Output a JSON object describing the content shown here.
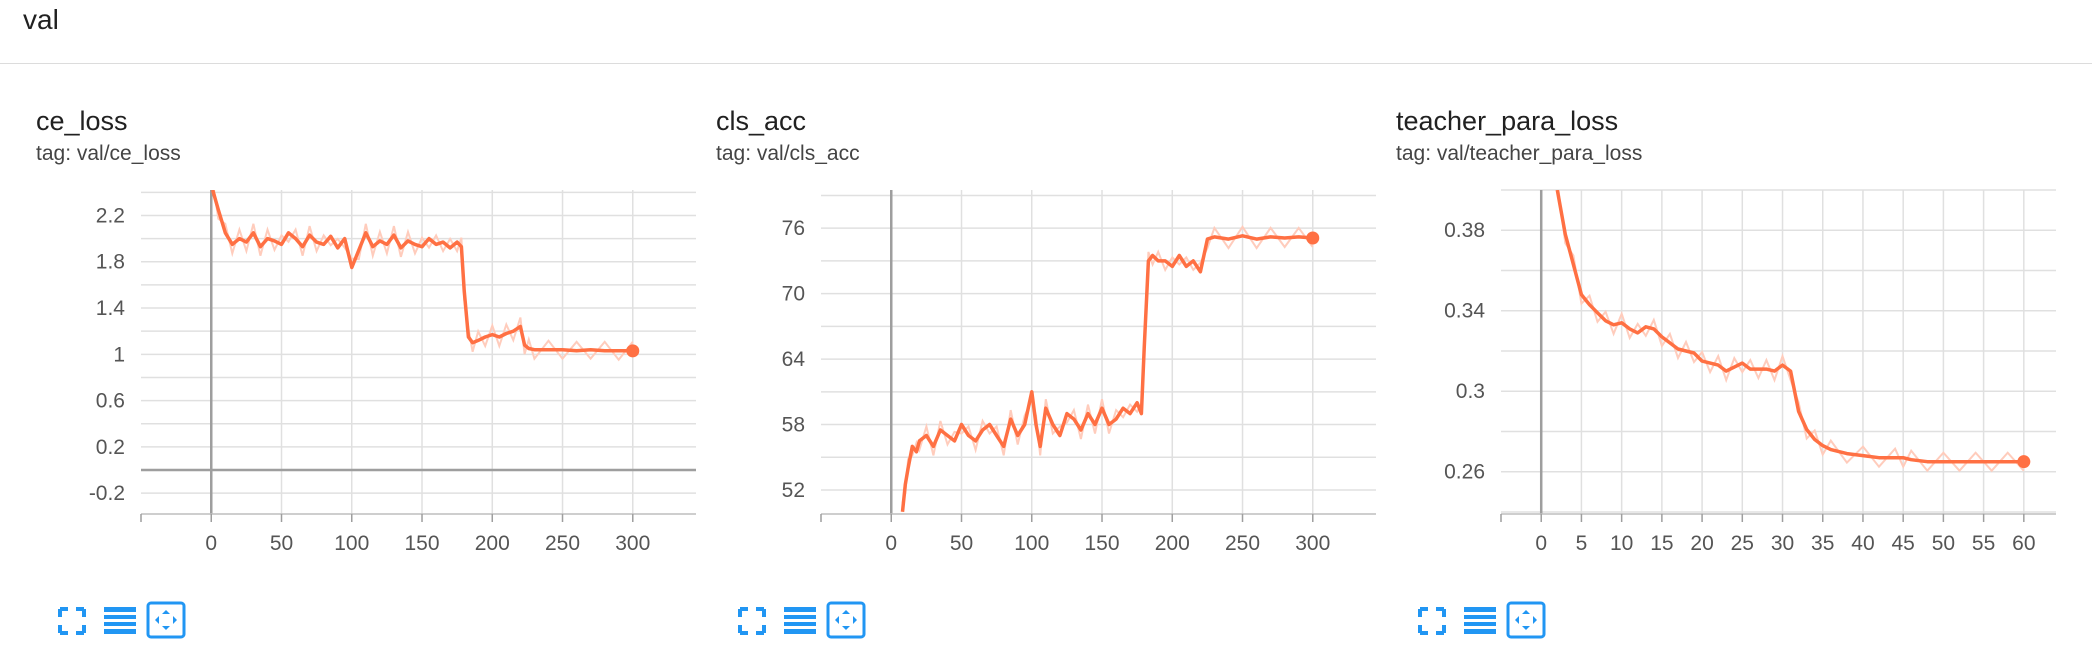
{
  "section": {
    "title": "val"
  },
  "colors": {
    "line": "#ff7043",
    "raw": "#ffccbc",
    "grid": "#e0e0e0",
    "axis": "#9e9e9e",
    "icon": "#2196f3"
  },
  "toolbar_icons": [
    "fullscreen-icon",
    "data-table-icon",
    "fit-domain-icon"
  ],
  "chart_data": [
    {
      "type": "line",
      "title": "ce_loss",
      "tag": "tag: val/ce_loss",
      "xlim": [
        -50,
        345
      ],
      "ylim": [
        -0.38,
        2.42
      ],
      "xticks": [
        0,
        50,
        100,
        150,
        200,
        250,
        300
      ],
      "yticks": [
        -0.2,
        0.2,
        0.6,
        1,
        1.4,
        1.8,
        2.2
      ],
      "y_minor": [
        -0.4,
        0,
        0.4,
        0.8,
        1.2,
        1.6,
        2.0,
        2.4
      ],
      "grid": true,
      "series": [
        {
          "x": [
            1,
            5,
            10,
            15,
            20,
            25,
            30,
            35,
            40,
            45,
            50,
            55,
            60,
            65,
            70,
            75,
            80,
            85,
            90,
            95,
            100,
            105,
            110,
            115,
            120,
            125,
            130,
            135,
            140,
            145,
            150,
            155,
            160,
            165,
            170,
            175,
            178,
            180,
            183,
            186,
            190,
            195,
            200,
            205,
            210,
            215,
            220,
            223,
            226,
            230,
            240,
            250,
            260,
            270,
            280,
            290,
            300
          ],
          "y": [
            2.42,
            2.25,
            2.05,
            1.95,
            2.0,
            1.97,
            2.05,
            1.93,
            2.0,
            1.98,
            1.95,
            2.05,
            2.0,
            1.93,
            2.03,
            1.97,
            1.95,
            2.02,
            1.92,
            2.0,
            1.75,
            1.9,
            2.05,
            1.93,
            1.98,
            1.95,
            2.03,
            1.92,
            1.98,
            1.95,
            1.93,
            2.0,
            1.95,
            1.97,
            1.92,
            1.97,
            1.93,
            1.55,
            1.15,
            1.1,
            1.12,
            1.15,
            1.17,
            1.15,
            1.18,
            1.2,
            1.24,
            1.08,
            1.05,
            1.04,
            1.04,
            1.04,
            1.03,
            1.04,
            1.03,
            1.03,
            1.03
          ]
        }
      ]
    },
    {
      "type": "line",
      "title": "cls_acc",
      "tag": "tag: val/cls_acc",
      "xlim": [
        -50,
        345
      ],
      "ylim": [
        49.8,
        79.5
      ],
      "xticks": [
        0,
        50,
        100,
        150,
        200,
        250,
        300
      ],
      "yticks": [
        52,
        58,
        64,
        70,
        76
      ],
      "y_minor": [
        55,
        61,
        67,
        73,
        79
      ],
      "grid": true,
      "series": [
        {
          "x": [
            8,
            10,
            12,
            15,
            18,
            20,
            25,
            30,
            35,
            40,
            45,
            50,
            55,
            60,
            65,
            70,
            75,
            80,
            85,
            90,
            95,
            100,
            103,
            106,
            110,
            115,
            120,
            125,
            130,
            135,
            140,
            145,
            150,
            155,
            160,
            165,
            170,
            175,
            178,
            180,
            183,
            186,
            190,
            195,
            200,
            205,
            210,
            215,
            220,
            225,
            230,
            240,
            250,
            260,
            270,
            280,
            290,
            300
          ],
          "y": [
            50,
            52.5,
            54,
            56,
            55.5,
            56.5,
            57,
            56,
            57.5,
            57,
            56.5,
            58,
            57,
            56.5,
            57.5,
            58,
            57,
            56,
            58.5,
            57,
            58,
            61,
            58,
            56,
            59.5,
            58,
            57,
            59,
            58.5,
            57.5,
            59,
            58,
            59.5,
            58,
            58.5,
            59.5,
            59,
            60,
            59,
            65,
            73,
            73.5,
            73,
            73,
            72.5,
            73.5,
            72.5,
            73,
            72,
            75,
            75.2,
            75,
            75.3,
            75,
            75.2,
            75.1,
            75.2,
            75.1
          ]
        }
      ]
    },
    {
      "type": "line",
      "title": "teacher_para_loss",
      "tag": "tag: val/teacher_para_loss",
      "xlim": [
        -5,
        64
      ],
      "ylim": [
        0.239,
        0.4
      ],
      "xticks": [
        0,
        5,
        10,
        15,
        20,
        25,
        30,
        35,
        40,
        45,
        50,
        55,
        60
      ],
      "yticks": [
        0.26,
        0.3,
        0.34,
        0.38
      ],
      "y_minor": [
        0.24,
        0.28,
        0.32,
        0.36,
        0.4
      ],
      "grid": true,
      "series": [
        {
          "x": [
            2,
            3,
            4,
            5,
            6,
            7,
            8,
            9,
            10,
            11,
            12,
            13,
            14,
            15,
            16,
            17,
            18,
            19,
            20,
            21,
            22,
            23,
            24,
            25,
            26,
            27,
            28,
            29,
            30,
            31,
            32,
            33,
            34,
            35,
            36,
            38,
            40,
            42,
            44,
            45,
            46,
            48,
            50,
            52,
            54,
            56,
            58,
            60
          ],
          "y": [
            0.4,
            0.378,
            0.363,
            0.348,
            0.343,
            0.339,
            0.335,
            0.333,
            0.334,
            0.331,
            0.329,
            0.332,
            0.331,
            0.327,
            0.324,
            0.321,
            0.32,
            0.319,
            0.315,
            0.314,
            0.313,
            0.31,
            0.312,
            0.314,
            0.311,
            0.311,
            0.311,
            0.31,
            0.313,
            0.31,
            0.29,
            0.281,
            0.276,
            0.273,
            0.271,
            0.269,
            0.268,
            0.267,
            0.267,
            0.267,
            0.266,
            0.265,
            0.265,
            0.265,
            0.265,
            0.265,
            0.265,
            0.265
          ]
        }
      ]
    }
  ]
}
